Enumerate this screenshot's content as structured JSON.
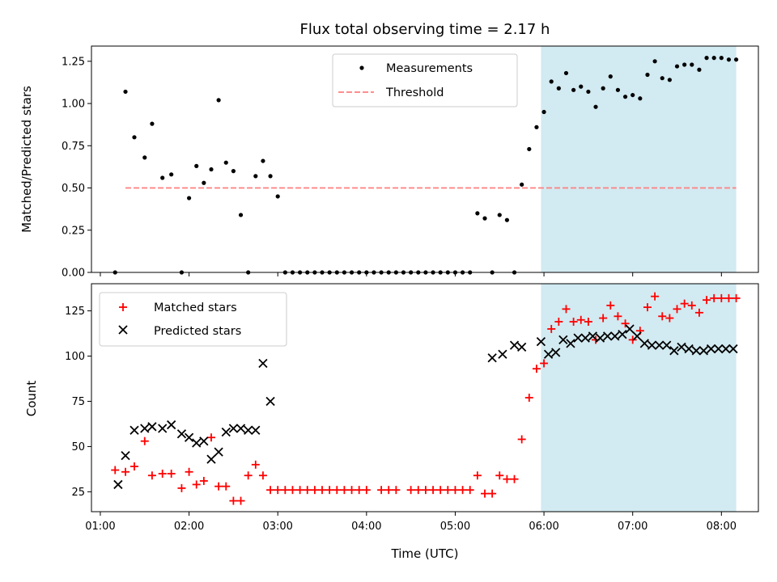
{
  "chart_data": [
    {
      "type": "scatter",
      "panel": "top",
      "title": "Flux total observing time = 2.17 h",
      "xlabel": "",
      "ylabel": "Matched/Predicted stars",
      "ylim": [
        0,
        1.34
      ],
      "yticks": [
        "0.00",
        "0.25",
        "0.50",
        "0.75",
        "1.00",
        "1.25"
      ],
      "legend_position": "upper center",
      "legend": [
        {
          "label": "Measurements",
          "marker": "dot",
          "color": "#000000"
        },
        {
          "label": "Threshold",
          "marker": "dashed-line",
          "color": "#ff7f7f"
        }
      ],
      "threshold": {
        "value": 0.5,
        "x_start": "01:17",
        "x_end": "08:10",
        "color": "#ff7f7f"
      },
      "shaded_region": {
        "x_start": "05:58",
        "x_end": "08:10",
        "color": "#add8e6"
      },
      "series": [
        {
          "name": "Measurements",
          "color": "#000000",
          "x": [
            "01:10",
            "01:17",
            "01:23",
            "01:30",
            "01:35",
            "01:42",
            "01:48",
            "01:55",
            "02:00",
            "02:05",
            "02:10",
            "02:15",
            "02:20",
            "02:25",
            "02:30",
            "02:35",
            "02:40",
            "02:45",
            "02:50",
            "02:55",
            "03:00",
            "03:05",
            "03:10",
            "03:15",
            "03:20",
            "03:25",
            "03:30",
            "03:35",
            "03:40",
            "03:45",
            "03:50",
            "03:55",
            "04:00",
            "04:05",
            "04:10",
            "04:15",
            "04:20",
            "04:25",
            "04:30",
            "04:35",
            "04:40",
            "04:45",
            "04:50",
            "04:55",
            "05:00",
            "05:05",
            "05:10",
            "05:15",
            "05:20",
            "05:25",
            "05:30",
            "05:35",
            "05:40",
            "05:45",
            "05:50",
            "05:55",
            "06:00",
            "06:05",
            "06:10",
            "06:15",
            "06:20",
            "06:25",
            "06:30",
            "06:35",
            "06:40",
            "06:45",
            "06:50",
            "06:55",
            "07:00",
            "07:05",
            "07:10",
            "07:15",
            "07:20",
            "07:25",
            "07:30",
            "07:35",
            "07:40",
            "07:45",
            "07:50",
            "07:55",
            "08:00",
            "08:05",
            "08:10"
          ],
          "y": [
            0.0,
            1.07,
            0.8,
            0.68,
            0.88,
            0.56,
            0.58,
            0.0,
            0.44,
            0.63,
            0.53,
            0.61,
            1.02,
            0.65,
            0.6,
            0.34,
            0.0,
            0.57,
            0.66,
            0.57,
            0.45,
            0.0,
            0.0,
            0.0,
            0.0,
            0.0,
            0.0,
            0.0,
            0.0,
            0.0,
            0.0,
            0.0,
            0.0,
            0.0,
            0.0,
            0.0,
            0.0,
            0.0,
            0.0,
            0.0,
            0.0,
            0.0,
            0.0,
            0.0,
            0.0,
            0.0,
            0.0,
            0.35,
            0.32,
            0.0,
            0.34,
            0.31,
            0.0,
            0.52,
            0.73,
            0.86,
            0.95,
            1.13,
            1.09,
            1.18,
            1.08,
            1.1,
            1.07,
            0.98,
            1.09,
            1.16,
            1.08,
            1.04,
            1.05,
            1.03,
            1.17,
            1.25,
            1.15,
            1.14,
            1.22,
            1.23,
            1.23,
            1.2,
            1.27,
            1.27,
            1.27,
            1.26,
            1.26
          ]
        }
      ]
    },
    {
      "type": "scatter",
      "panel": "bottom",
      "title": "",
      "xlabel": "Time (UTC)",
      "ylabel": "Count",
      "ylim": [
        14,
        140
      ],
      "yticks": [
        "25",
        "50",
        "75",
        "100",
        "125"
      ],
      "xticks": [
        "01:00",
        "02:00",
        "03:00",
        "04:00",
        "05:00",
        "06:00",
        "07:00",
        "08:00"
      ],
      "xlim": [
        "00:54",
        "08:25"
      ],
      "legend_position": "upper left",
      "legend": [
        {
          "label": "Matched stars",
          "marker": "plus",
          "color": "#ff0000"
        },
        {
          "label": "Predicted stars",
          "marker": "x",
          "color": "#000000"
        }
      ],
      "shaded_region": {
        "x_start": "05:58",
        "x_end": "08:10",
        "color": "#add8e6"
      },
      "series": [
        {
          "name": "Matched stars",
          "marker": "plus",
          "color": "#ff0000",
          "x": [
            "01:10",
            "01:17",
            "01:23",
            "01:30",
            "01:35",
            "01:42",
            "01:48",
            "01:55",
            "02:00",
            "02:05",
            "02:10",
            "02:15",
            "02:20",
            "02:25",
            "02:30",
            "02:35",
            "02:40",
            "02:45",
            "02:50",
            "02:55",
            "03:00",
            "03:05",
            "03:10",
            "03:15",
            "03:20",
            "03:25",
            "03:30",
            "03:35",
            "03:40",
            "03:45",
            "03:50",
            "03:55",
            "04:00",
            "04:10",
            "04:15",
            "04:20",
            "04:30",
            "04:35",
            "04:40",
            "04:45",
            "04:50",
            "04:55",
            "05:00",
            "05:05",
            "05:10",
            "05:15",
            "05:20",
            "05:25",
            "05:30",
            "05:35",
            "05:40",
            "05:45",
            "05:50",
            "05:55",
            "06:00",
            "06:05",
            "06:10",
            "06:15",
            "06:20",
            "06:25",
            "06:30",
            "06:35",
            "06:40",
            "06:45",
            "06:50",
            "06:55",
            "07:00",
            "07:05",
            "07:10",
            "07:15",
            "07:20",
            "07:25",
            "07:30",
            "07:35",
            "07:40",
            "07:45",
            "07:50",
            "07:55",
            "08:00",
            "08:05",
            "08:10"
          ],
          "y": [
            37,
            36,
            39,
            53,
            34,
            35,
            35,
            27,
            36,
            29,
            31,
            55,
            28,
            28,
            20,
            20,
            34,
            40,
            34,
            26,
            26,
            26,
            26,
            26,
            26,
            26,
            26,
            26,
            26,
            26,
            26,
            26,
            26,
            26,
            26,
            26,
            26,
            26,
            26,
            26,
            26,
            26,
            26,
            26,
            26,
            34,
            24,
            24,
            34,
            32,
            32,
            54,
            77,
            93,
            96,
            115,
            119,
            126,
            119,
            120,
            119,
            109,
            121,
            128,
            122,
            118,
            109,
            114,
            127,
            133,
            122,
            121,
            126,
            129,
            128,
            124,
            131,
            132,
            132,
            132,
            132
          ]
        },
        {
          "name": "Predicted stars",
          "marker": "x",
          "color": "#000000",
          "x": [
            "01:12",
            "01:17",
            "01:23",
            "01:30",
            "01:35",
            "01:42",
            "01:48",
            "01:55",
            "02:00",
            "02:05",
            "02:10",
            "02:15",
            "02:20",
            "02:25",
            "02:30",
            "02:35",
            "02:40",
            "02:45",
            "02:50",
            "02:55",
            "05:25",
            "05:32",
            "05:40",
            "05:45",
            "05:58",
            "06:03",
            "06:08",
            "06:13",
            "06:18",
            "06:23",
            "06:28",
            "06:33",
            "06:38",
            "06:43",
            "06:48",
            "06:53",
            "06:58",
            "07:03",
            "07:08",
            "07:13",
            "07:18",
            "07:23",
            "07:28",
            "07:33",
            "07:38",
            "07:43",
            "07:48",
            "07:53",
            "07:58",
            "08:03",
            "08:08"
          ],
          "y": [
            29,
            45,
            59,
            60,
            61,
            60,
            62,
            57,
            55,
            52,
            53,
            43,
            47,
            58,
            60,
            60,
            59,
            59,
            96,
            75,
            99,
            101,
            106,
            105,
            108,
            101,
            102,
            109,
            107,
            110,
            110,
            111,
            110,
            111,
            111,
            112,
            115,
            111,
            107,
            106,
            106,
            106,
            103,
            105,
            104,
            103,
            103,
            104,
            104,
            104,
            104
          ]
        }
      ]
    }
  ]
}
